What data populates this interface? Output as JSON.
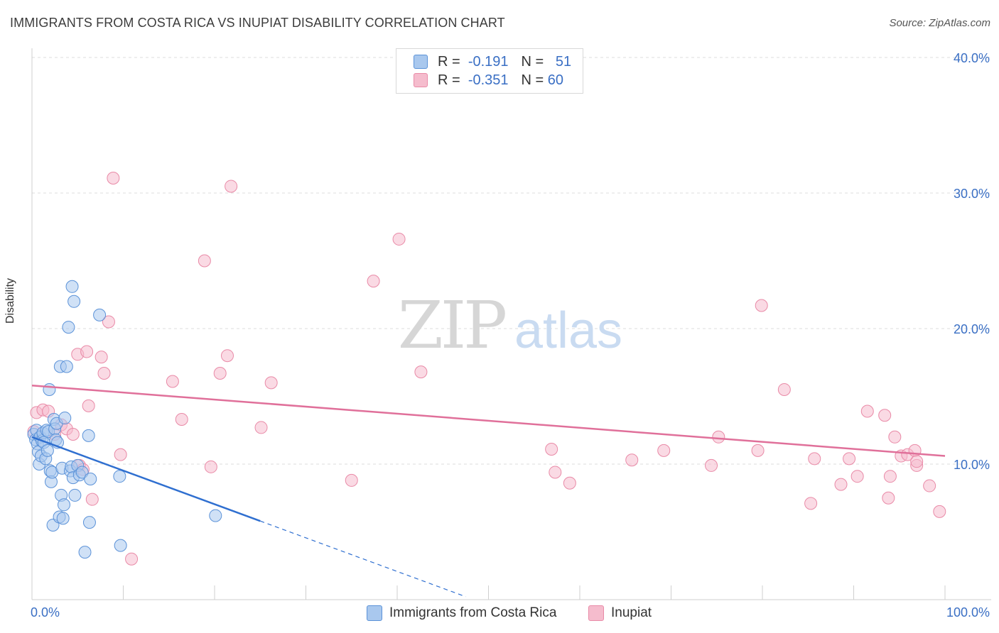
{
  "title": "IMMIGRANTS FROM COSTA RICA VS INUPIAT DISABILITY CORRELATION CHART",
  "source": "Source: ZipAtlas.com",
  "watermark": {
    "zip": "ZIP",
    "atlas": "atlas"
  },
  "legend_box": {
    "rows": [
      {
        "r_label": "R =",
        "r_value": "-0.191",
        "n_label": "N =",
        "n_value": "51"
      },
      {
        "r_label": "R =",
        "r_value": "-0.351",
        "n_label": "N =",
        "n_value": "60"
      }
    ]
  },
  "colors": {
    "blue_fill": "#a9c8ee",
    "blue_stroke": "#5b92d8",
    "blue_line": "#2f6fd0",
    "pink_fill": "#f5bccd",
    "pink_stroke": "#e98aa7",
    "pink_line": "#e0709a",
    "tick_label": "#3a6fc4",
    "grid": "#dcdcdc"
  },
  "chart_data": {
    "type": "scatter",
    "title": "IMMIGRANTS FROM COSTA RICA VS INUPIAT DISABILITY CORRELATION CHART",
    "xlabel": "",
    "ylabel": "Disability",
    "xlim": [
      0,
      100
    ],
    "ylim": [
      0,
      42
    ],
    "x_tick_labels": [
      "0.0%",
      "100.0%"
    ],
    "y_ticks": [
      10,
      20,
      30,
      40
    ],
    "y_tick_labels": [
      "10.0%",
      "20.0%",
      "30.0%",
      "40.0%"
    ],
    "grid": true,
    "legend_position": "top-center",
    "series": [
      {
        "name": "Immigrants from Costa Rica",
        "color": "blue",
        "r": -0.191,
        "n": 51,
        "trend": {
          "x0": 0,
          "y0": 12.0,
          "x1": 25,
          "y1": 5.8,
          "dash_to_x": 47.5
        },
        "points": [
          [
            0.2,
            12.2
          ],
          [
            0.4,
            11.8
          ],
          [
            0.5,
            12.5
          ],
          [
            0.6,
            11.5
          ],
          [
            0.7,
            10.9
          ],
          [
            0.8,
            10.0
          ],
          [
            0.9,
            12.0
          ],
          [
            1.0,
            10.6
          ],
          [
            1.1,
            11.7
          ],
          [
            1.2,
            12.3
          ],
          [
            1.3,
            11.6
          ],
          [
            1.5,
            10.4
          ],
          [
            1.6,
            12.5
          ],
          [
            1.7,
            11.0
          ],
          [
            1.8,
            12.4
          ],
          [
            1.9,
            15.5
          ],
          [
            2.0,
            9.5
          ],
          [
            2.1,
            8.7
          ],
          [
            2.2,
            9.4
          ],
          [
            2.3,
            5.5
          ],
          [
            2.4,
            13.3
          ],
          [
            2.5,
            12.6
          ],
          [
            2.6,
            11.8
          ],
          [
            2.7,
            13.0
          ],
          [
            2.8,
            11.6
          ],
          [
            3.0,
            6.1
          ],
          [
            3.1,
            17.2
          ],
          [
            3.2,
            7.7
          ],
          [
            3.3,
            9.7
          ],
          [
            3.4,
            6.0
          ],
          [
            3.5,
            7.0
          ],
          [
            3.6,
            13.4
          ],
          [
            3.8,
            17.2
          ],
          [
            4.0,
            20.1
          ],
          [
            4.2,
            9.5
          ],
          [
            4.3,
            9.8
          ],
          [
            4.4,
            23.1
          ],
          [
            4.5,
            9.0
          ],
          [
            4.6,
            22.0
          ],
          [
            4.7,
            7.7
          ],
          [
            5.0,
            9.9
          ],
          [
            5.2,
            9.2
          ],
          [
            5.5,
            9.4
          ],
          [
            5.8,
            3.5
          ],
          [
            6.2,
            12.1
          ],
          [
            6.3,
            5.7
          ],
          [
            6.4,
            8.9
          ],
          [
            7.4,
            21.0
          ],
          [
            9.6,
            9.1
          ],
          [
            9.7,
            4.0
          ],
          [
            20.1,
            6.2
          ]
        ]
      },
      {
        "name": "Inupiat",
        "color": "pink",
        "r": -0.351,
        "n": 60,
        "trend": {
          "x0": 0,
          "y0": 15.8,
          "x1": 100,
          "y1": 10.6
        },
        "points": [
          [
            0.2,
            12.4
          ],
          [
            0.5,
            13.8
          ],
          [
            1.2,
            14.0
          ],
          [
            1.8,
            13.9
          ],
          [
            2.5,
            12.2
          ],
          [
            3.2,
            12.9
          ],
          [
            3.8,
            12.6
          ],
          [
            4.5,
            12.2
          ],
          [
            5.0,
            18.1
          ],
          [
            5.2,
            9.9
          ],
          [
            5.6,
            9.6
          ],
          [
            6.0,
            18.3
          ],
          [
            6.2,
            14.3
          ],
          [
            6.6,
            7.4
          ],
          [
            7.6,
            17.9
          ],
          [
            7.9,
            16.7
          ],
          [
            8.4,
            20.5
          ],
          [
            8.9,
            31.1
          ],
          [
            9.7,
            10.7
          ],
          [
            10.9,
            3.0
          ],
          [
            15.4,
            16.1
          ],
          [
            16.4,
            13.3
          ],
          [
            18.9,
            25.0
          ],
          [
            19.6,
            9.8
          ],
          [
            20.6,
            16.7
          ],
          [
            21.4,
            18.0
          ],
          [
            21.8,
            30.5
          ],
          [
            25.1,
            12.7
          ],
          [
            26.2,
            16.0
          ],
          [
            35.0,
            8.8
          ],
          [
            37.4,
            23.5
          ],
          [
            40.2,
            26.6
          ],
          [
            42.6,
            16.8
          ],
          [
            56.9,
            11.1
          ],
          [
            57.3,
            9.4
          ],
          [
            58.9,
            8.6
          ],
          [
            65.7,
            10.3
          ],
          [
            69.2,
            11.0
          ],
          [
            74.4,
            9.9
          ],
          [
            75.2,
            12.0
          ],
          [
            79.5,
            11.0
          ],
          [
            79.9,
            21.7
          ],
          [
            82.4,
            15.5
          ],
          [
            85.3,
            7.1
          ],
          [
            85.7,
            10.4
          ],
          [
            88.6,
            8.5
          ],
          [
            89.5,
            10.4
          ],
          [
            90.4,
            9.1
          ],
          [
            91.5,
            13.9
          ],
          [
            93.4,
            13.6
          ],
          [
            93.8,
            7.5
          ],
          [
            94.0,
            9.1
          ],
          [
            94.5,
            12.0
          ],
          [
            95.2,
            10.6
          ],
          [
            95.9,
            10.7
          ],
          [
            96.7,
            11.0
          ],
          [
            96.9,
            9.9
          ],
          [
            96.9,
            10.2
          ],
          [
            98.3,
            8.4
          ],
          [
            99.4,
            6.5
          ]
        ]
      }
    ]
  }
}
